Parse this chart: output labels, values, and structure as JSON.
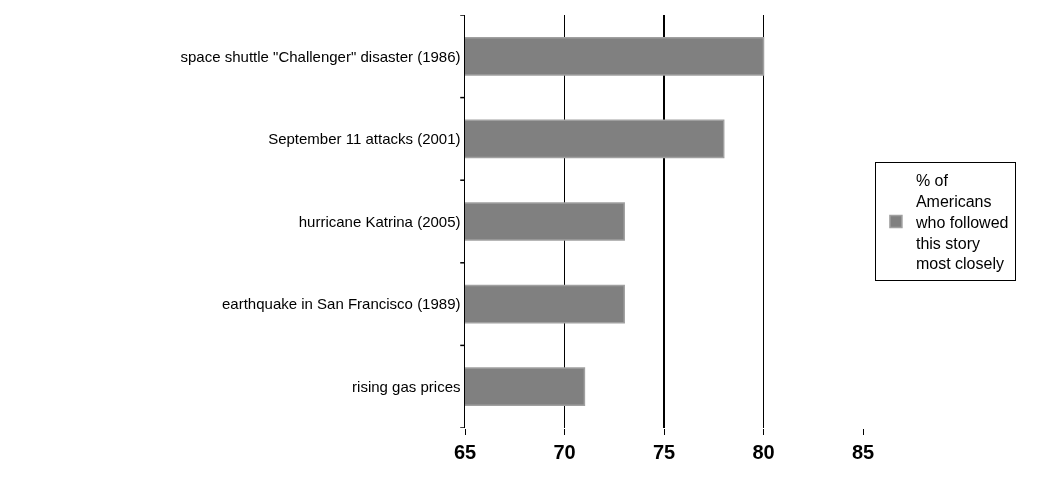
{
  "chart_data": {
    "type": "bar",
    "orientation": "horizontal",
    "categories": [
      "space shuttle \"Challenger\" disaster (1986)",
      "September 11 attacks (2001)",
      "hurricane Katrina (2005)",
      "earthquake in San Francisco (1989)",
      "rising gas prices"
    ],
    "series": [
      {
        "name": "% of Americans who followed this story most closely",
        "color": "#808080",
        "values": [
          80,
          78,
          73,
          73,
          71
        ]
      }
    ],
    "xlim": [
      65,
      85
    ],
    "xticks": [
      65,
      70,
      75,
      80,
      85
    ],
    "grid": "x",
    "legend": "right"
  }
}
